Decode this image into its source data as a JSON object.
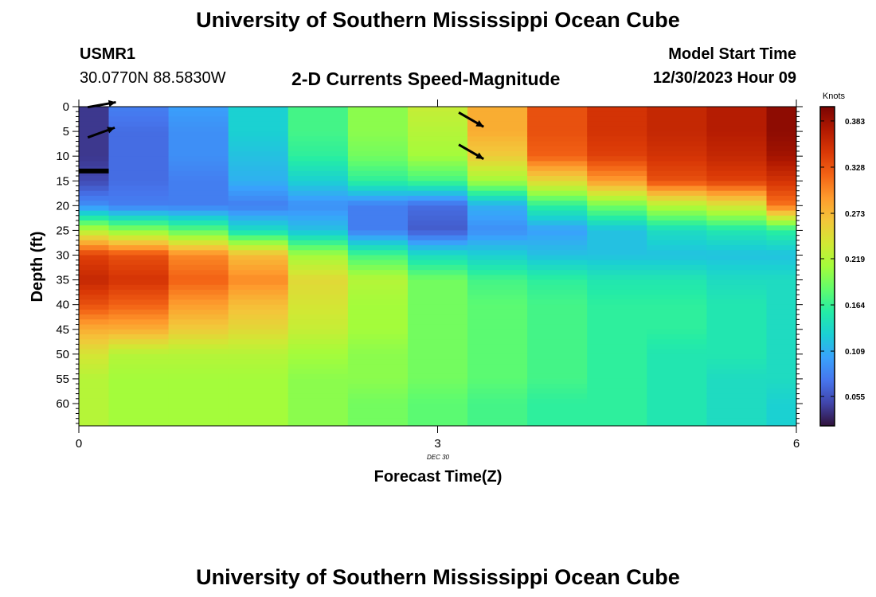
{
  "header": {
    "title": "University of Southern Mississippi Ocean Cube",
    "station": "USMR1",
    "coords": "30.0770N  88.5830W",
    "subtitle": "2-D Currents Speed-Magnitude",
    "model_label": "Model Start Time",
    "model_time": "12/30/2023 Hour 09",
    "date_label": "DEC  30",
    "footer_title": "University of Southern Mississippi Ocean Cube"
  },
  "colors": {
    "scale": [
      "#30123b",
      "#4145ab",
      "#4675ed",
      "#39a2fc",
      "#1bcfd4",
      "#24eca6",
      "#61fc6c",
      "#a4fc3b",
      "#d1e834",
      "#f3c63a",
      "#fe9b2d",
      "#f36315",
      "#d93806",
      "#b11901",
      "#7a0402"
    ]
  },
  "chart_data": {
    "type": "heatmap",
    "title": "2-D Currents Speed-Magnitude",
    "xlabel": "Forecast Time(Z)",
    "ylabel": "Depth (ft)",
    "xlim": [
      0,
      6
    ],
    "ylim": [
      64.5,
      0
    ],
    "x_ticks": [
      0,
      3,
      6
    ],
    "x_tick_labels": [
      "0",
      "3",
      "6"
    ],
    "y_ticks": [
      0,
      5,
      10,
      15,
      20,
      25,
      30,
      35,
      40,
      45,
      50,
      55,
      60
    ],
    "y_tick_labels": [
      "0",
      "5",
      "10",
      "15",
      "20",
      "25",
      "30",
      "35",
      "40",
      "45",
      "50",
      "55",
      "60"
    ],
    "colorbar": {
      "label": "Knots",
      "range": [
        0.02,
        0.4
      ],
      "ticks": [
        0.055,
        0.109,
        0.164,
        0.219,
        0.273,
        0.328,
        0.383
      ],
      "tick_labels": [
        "0.055",
        "0.109",
        "0.164",
        "0.219",
        "0.273",
        "0.328",
        "0.383"
      ]
    },
    "x_columns": [
      0,
      0.5,
      1,
      1.5,
      2,
      2.5,
      3,
      3.5,
      4,
      4.5,
      5,
      5.5,
      6
    ],
    "depth_rows": [
      0,
      5,
      10,
      15,
      20,
      25,
      30,
      35,
      40,
      45,
      50,
      55,
      60
    ],
    "speed_knots": [
      [
        0.04,
        0.08,
        0.1,
        0.13,
        0.17,
        0.2,
        0.23,
        0.28,
        0.33,
        0.35,
        0.36,
        0.37,
        0.39
      ],
      [
        0.04,
        0.07,
        0.09,
        0.13,
        0.17,
        0.2,
        0.22,
        0.28,
        0.33,
        0.35,
        0.36,
        0.37,
        0.39
      ],
      [
        0.04,
        0.07,
        0.09,
        0.12,
        0.16,
        0.19,
        0.21,
        0.26,
        0.32,
        0.34,
        0.35,
        0.36,
        0.38
      ],
      [
        0.05,
        0.07,
        0.08,
        0.11,
        0.13,
        0.16,
        0.17,
        0.21,
        0.25,
        0.29,
        0.33,
        0.34,
        0.35
      ],
      [
        0.09,
        0.08,
        0.08,
        0.08,
        0.09,
        0.08,
        0.07,
        0.11,
        0.16,
        0.19,
        0.22,
        0.24,
        0.31
      ],
      [
        0.22,
        0.2,
        0.18,
        0.14,
        0.12,
        0.08,
        0.06,
        0.09,
        0.1,
        0.12,
        0.14,
        0.15,
        0.16
      ],
      [
        0.34,
        0.33,
        0.3,
        0.27,
        0.21,
        0.17,
        0.14,
        0.13,
        0.12,
        0.12,
        0.12,
        0.12,
        0.12
      ],
      [
        0.36,
        0.35,
        0.32,
        0.3,
        0.25,
        0.22,
        0.19,
        0.17,
        0.16,
        0.15,
        0.15,
        0.14,
        0.14
      ],
      [
        0.33,
        0.32,
        0.29,
        0.27,
        0.24,
        0.21,
        0.19,
        0.18,
        0.17,
        0.16,
        0.16,
        0.15,
        0.14
      ],
      [
        0.28,
        0.28,
        0.26,
        0.25,
        0.23,
        0.21,
        0.19,
        0.18,
        0.17,
        0.16,
        0.16,
        0.15,
        0.14
      ],
      [
        0.24,
        0.22,
        0.22,
        0.22,
        0.21,
        0.2,
        0.19,
        0.18,
        0.17,
        0.16,
        0.15,
        0.15,
        0.14
      ],
      [
        0.22,
        0.21,
        0.21,
        0.21,
        0.2,
        0.2,
        0.19,
        0.18,
        0.17,
        0.16,
        0.15,
        0.14,
        0.14
      ],
      [
        0.22,
        0.21,
        0.21,
        0.21,
        0.2,
        0.19,
        0.18,
        0.17,
        0.16,
        0.16,
        0.15,
        0.14,
        0.13
      ]
    ],
    "vectors": [
      {
        "x": 0.1,
        "depth": 0,
        "dir_deg": 80
      },
      {
        "x": 0.1,
        "depth": 6,
        "dir_deg": 70
      },
      {
        "x": 3.2,
        "depth": 1.5,
        "dir_deg": 120
      },
      {
        "x": 3.2,
        "depth": 8,
        "dir_deg": 120
      }
    ],
    "surface_marker": {
      "x": [
        0,
        0.25
      ],
      "depth": 13
    }
  }
}
